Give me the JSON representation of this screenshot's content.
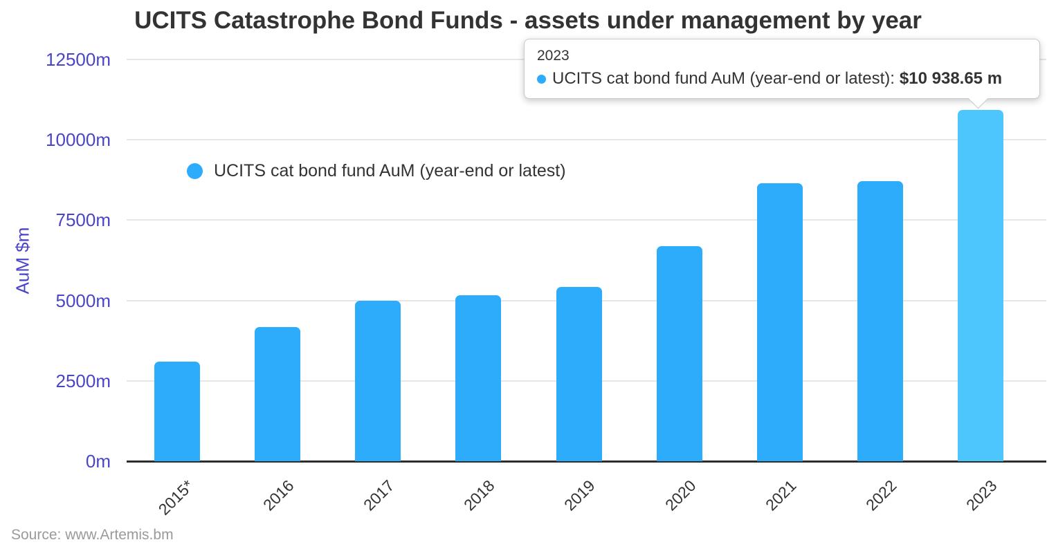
{
  "title": "UCITS Catastrophe Bond Funds - assets under management by year",
  "y_axis": {
    "title": "AuM $m",
    "tick_labels": [
      "12500m",
      "10000m",
      "7500m",
      "5000m",
      "2500m",
      "0m"
    ]
  },
  "legend": {
    "label": "UCITS cat bond fund AuM (year-end or latest)"
  },
  "tooltip": {
    "category": "2023",
    "series_label": "UCITS cat bond fund AuM (year-end or latest):",
    "value": "$10 938.65 m"
  },
  "source": "Source: www.Artemis.bm",
  "colors": {
    "bar": "#2dacfb",
    "bar_highlight": "#4cc6fd",
    "axis_label": "#4a45c7",
    "gridline": "#e6e6e6",
    "axis_line": "#2d2d2d",
    "text": "#333333",
    "source_text": "#9a9a9a"
  },
  "chart_data": {
    "type": "bar",
    "categories": [
      "2015*",
      "2016",
      "2017",
      "2018",
      "2019",
      "2020",
      "2021",
      "2022",
      "2023"
    ],
    "series": [
      {
        "name": "UCITS cat bond fund AuM (year-end or latest)",
        "values": [
          3090,
          4170,
          5000,
          5160,
          5430,
          6700,
          8650,
          8720,
          10938.65
        ]
      }
    ],
    "title": "UCITS Catastrophe Bond Funds - assets under management by year",
    "xlabel": "",
    "ylabel": "AuM $m",
    "ylim": [
      0,
      12500
    ],
    "ytick_values": [
      0,
      2500,
      5000,
      7500,
      10000,
      12500
    ],
    "grid": "horizontal",
    "legend_position": "inside-top-left",
    "highlighted_category": "2023",
    "highlight_tooltip_value": "$10 938.65 m"
  }
}
